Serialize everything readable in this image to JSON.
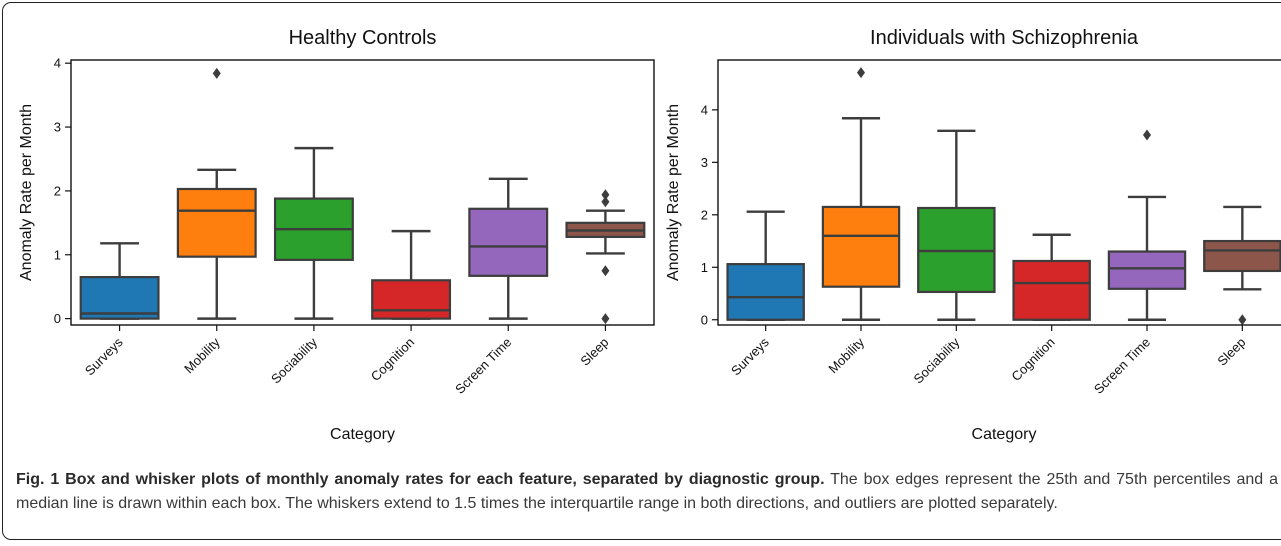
{
  "figure": {
    "caption_bold": "Fig. 1 Box and whisker plots of monthly anomaly rates for each feature, separated by diagnostic group.",
    "caption_rest": " The box edges represent the 25th and 75th percentiles and a median line is drawn within each box. The whiskers extend to 1.5 times the interquartile range in both directions, and outliers are plotted separately."
  },
  "chart_data": [
    {
      "type": "box",
      "title": "Healthy Controls",
      "xlabel": "Category",
      "ylabel": "Anomaly Rate per Month",
      "ylim": [
        -0.1,
        4.05
      ],
      "yticks": [
        0,
        1,
        2,
        3,
        4
      ],
      "categories": [
        "Surveys",
        "Mobility",
        "Sociability",
        "Cognition",
        "Screen Time",
        "Sleep"
      ],
      "colors": [
        "#1f77b4",
        "#ff7f0e",
        "#2ca02c",
        "#d62728",
        "#9467bd",
        "#8c564b"
      ],
      "boxes": [
        {
          "whisker_low": 0,
          "q1": 0,
          "median": 0.08,
          "q3": 0.65,
          "whisker_high": 1.18,
          "outliers": []
        },
        {
          "whisker_low": 0,
          "q1": 0.97,
          "median": 1.69,
          "q3": 2.03,
          "whisker_high": 2.33,
          "outliers": [
            3.84
          ]
        },
        {
          "whisker_low": 0,
          "q1": 0.92,
          "median": 1.4,
          "q3": 1.88,
          "whisker_high": 2.67,
          "outliers": []
        },
        {
          "whisker_low": 0,
          "q1": 0,
          "median": 0.13,
          "q3": 0.6,
          "whisker_high": 1.37,
          "outliers": []
        },
        {
          "whisker_low": 0,
          "q1": 0.67,
          "median": 1.13,
          "q3": 1.72,
          "whisker_high": 2.19,
          "outliers": []
        },
        {
          "whisker_low": 1.02,
          "q1": 1.28,
          "median": 1.38,
          "q3": 1.5,
          "whisker_high": 1.69,
          "outliers": [
            1.94,
            1.83,
            0.75,
            0
          ]
        }
      ]
    },
    {
      "type": "box",
      "title": "Individuals with Schizophrenia",
      "xlabel": "Category",
      "ylabel": "Anomaly Rate per Month",
      "ylim": [
        -0.1,
        4.95
      ],
      "yticks": [
        0,
        1,
        2,
        3,
        4
      ],
      "categories": [
        "Surveys",
        "Mobility",
        "Sociability",
        "Cognition",
        "Screen Time",
        "Sleep"
      ],
      "colors": [
        "#1f77b4",
        "#ff7f0e",
        "#2ca02c",
        "#d62728",
        "#9467bd",
        "#8c564b"
      ],
      "boxes": [
        {
          "whisker_low": 0,
          "q1": 0,
          "median": 0.43,
          "q3": 1.06,
          "whisker_high": 2.06,
          "outliers": []
        },
        {
          "whisker_low": 0,
          "q1": 0.63,
          "median": 1.6,
          "q3": 2.15,
          "whisker_high": 3.84,
          "outliers": [
            4.71
          ]
        },
        {
          "whisker_low": 0,
          "q1": 0.53,
          "median": 1.31,
          "q3": 2.13,
          "whisker_high": 3.6,
          "outliers": []
        },
        {
          "whisker_low": 0,
          "q1": 0,
          "median": 0.7,
          "q3": 1.12,
          "whisker_high": 1.62,
          "outliers": []
        },
        {
          "whisker_low": 0,
          "q1": 0.59,
          "median": 0.98,
          "q3": 1.3,
          "whisker_high": 2.34,
          "outliers": [
            3.52
          ]
        },
        {
          "whisker_low": 0.58,
          "q1": 0.93,
          "median": 1.32,
          "q3": 1.5,
          "whisker_high": 2.15,
          "outliers": [
            0
          ]
        }
      ]
    }
  ]
}
